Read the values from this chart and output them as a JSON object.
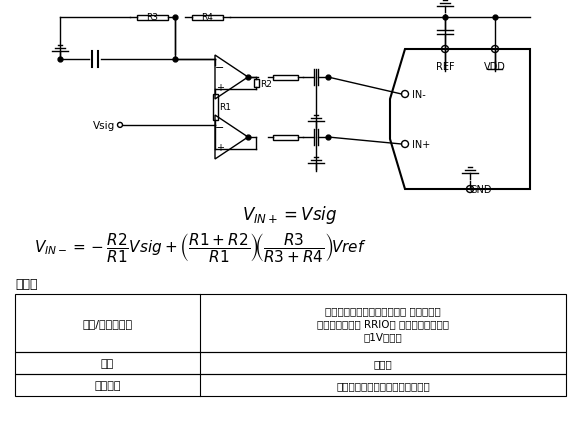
{
  "bg_color": "#ffffff",
  "section_title": "利与弊",
  "rows": [
    [
      "裕量/单电源供电",
      "受输入和输出裕量要求限制。 单电源供电\n时，第一级需要 RRIO。 输入裕量要求通常\n为1V左右。"
    ],
    [
      "增益",
      "不适用"
    ],
    [
      "输入阻抗",
      "高阻抗受放大器的输入漏电流限制"
    ]
  ],
  "lw": 1.0,
  "color": "#000000"
}
